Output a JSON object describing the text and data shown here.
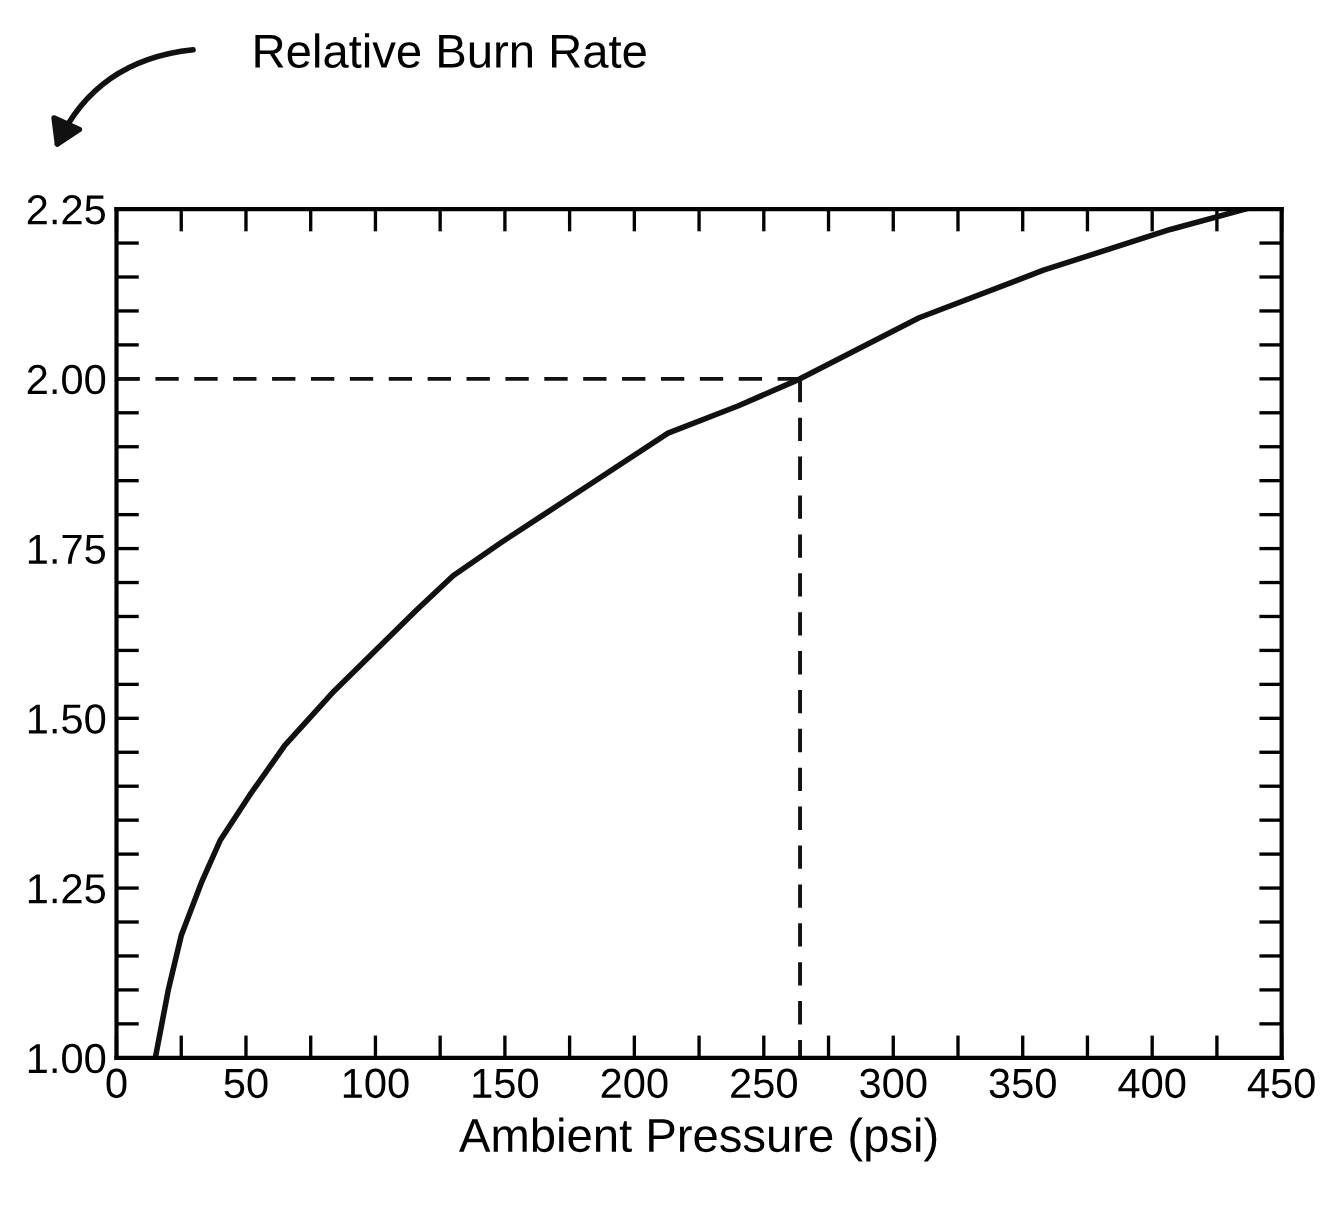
{
  "chart_data": {
    "type": "line",
    "title": "Relative Burn Rate",
    "xlabel": "Ambient Pressure (psi)",
    "xlim": [
      0,
      450
    ],
    "ylim": [
      1.0,
      2.25
    ],
    "xticks": [
      0,
      {
        "value": 25,
        "label": null
      },
      50,
      {
        "value": 75,
        "label": null
      },
      100,
      {
        "value": 125,
        "label": null
      },
      150,
      {
        "value": 175,
        "label": null
      },
      200,
      {
        "value": 225,
        "label": null
      },
      250,
      {
        "value": 275,
        "label": null
      },
      300,
      {
        "value": 325,
        "label": null
      },
      350,
      {
        "value": 375,
        "label": null
      },
      400,
      {
        "value": 425,
        "label": null
      },
      450
    ],
    "yticks": [
      {
        "value": 1.0,
        "label": "1.00"
      },
      {
        "value": 1.05,
        "label": null
      },
      {
        "value": 1.1,
        "label": null
      },
      {
        "value": 1.15,
        "label": null
      },
      {
        "value": 1.2,
        "label": null
      },
      {
        "value": 1.25,
        "label": "1.25"
      },
      {
        "value": 1.3,
        "label": null
      },
      {
        "value": 1.35,
        "label": null
      },
      {
        "value": 1.4,
        "label": null
      },
      {
        "value": 1.45,
        "label": null
      },
      {
        "value": 1.5,
        "label": "1.50"
      },
      {
        "value": 1.55,
        "label": null
      },
      {
        "value": 1.6,
        "label": null
      },
      {
        "value": 1.65,
        "label": null
      },
      {
        "value": 1.7,
        "label": null
      },
      {
        "value": 1.75,
        "label": "1.75"
      },
      {
        "value": 1.8,
        "label": null
      },
      {
        "value": 1.85,
        "label": null
      },
      {
        "value": 1.9,
        "label": null
      },
      {
        "value": 1.95,
        "label": null
      },
      {
        "value": 2.0,
        "label": "2.00"
      },
      {
        "value": 2.05,
        "label": null
      },
      {
        "value": 2.1,
        "label": null
      },
      {
        "value": 2.15,
        "label": null
      },
      {
        "value": 2.2,
        "label": null
      },
      {
        "value": 2.25,
        "label": "2.25"
      }
    ],
    "grid": false,
    "legend": false,
    "series": [
      {
        "color": "#111111",
        "line_style": "solid",
        "x": [
          15,
          20,
          25,
          33,
          40,
          52,
          65,
          84,
          100,
          116,
          130,
          149,
          165,
          181,
          213,
          240,
          264,
          310,
          358,
          407,
          436
        ],
        "values": [
          1.0,
          1.1,
          1.18,
          1.26,
          1.32,
          1.39,
          1.46,
          1.54,
          1.6,
          1.66,
          1.71,
          1.76,
          1.8,
          1.84,
          1.92,
          1.96,
          2.0,
          2.09,
          2.16,
          2.22,
          2.25
        ]
      },
      {
        "color": "#111111",
        "line_style": "dashed",
        "x": [
          0,
          264
        ],
        "values": [
          2.0,
          2.0
        ]
      },
      {
        "color": "#111111",
        "line_style": "dashed",
        "x": [
          264,
          264
        ],
        "values": [
          2.0,
          1.0
        ]
      }
    ]
  }
}
